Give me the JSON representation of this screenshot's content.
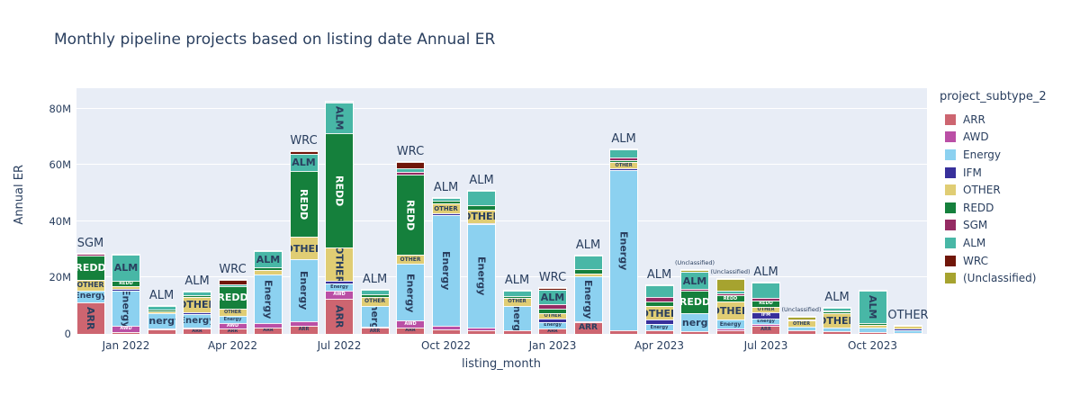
{
  "title": "Monthly pipeline projects based on listing date Annual ER",
  "y_axis": {
    "label": "Annual ER",
    "ticks": [
      {
        "label": "0",
        "value": 0
      },
      {
        "label": "20M",
        "value": 20
      },
      {
        "label": "40M",
        "value": 40
      },
      {
        "label": "60M",
        "value": 60
      },
      {
        "label": "80M",
        "value": 80
      }
    ]
  },
  "x_axis": {
    "label": "listing_month",
    "tick_labels": [
      "Jan 2022",
      "Apr 2022",
      "Jul 2022",
      "Oct 2022",
      "Jan 2023",
      "Apr 2023",
      "Jul 2023",
      "Oct 2023"
    ]
  },
  "legend": {
    "title": "project_subtype_2",
    "items": [
      "ARR",
      "AWD",
      "Energy",
      "IFM",
      "OTHER",
      "REDD",
      "SGM",
      "ALM",
      "WRC",
      "(Unclassified)"
    ]
  },
  "chart_data": {
    "type": "bar",
    "stacked": true,
    "unit": "M",
    "ylim": [
      0,
      87
    ],
    "x": [
      "Dec 2021",
      "Jan 2022",
      "Feb 2022",
      "Mar 2022",
      "Apr 2022",
      "May 2022",
      "Jun 2022",
      "Jul 2022",
      "Aug 2022",
      "Sep 2022",
      "Oct 2022",
      "Nov 2022",
      "Dec 2022",
      "Jan 2023",
      "Feb 2023",
      "Mar 2023",
      "Apr 2023",
      "May 2023",
      "Jun 2023",
      "Jul 2023",
      "Aug 2023",
      "Sep 2023",
      "Oct 2023",
      "Nov 2023"
    ],
    "series": [
      {
        "name": "ARR",
        "color": "#cd6570",
        "text_color": "#2a3f5f",
        "values": [
          11.2,
          0.8,
          1.5,
          1.8,
          1.8,
          2.3,
          2.9,
          12.5,
          2.2,
          2.3,
          1.5,
          1.3,
          1.4,
          1.8,
          4.2,
          1.2,
          1.3,
          1.0,
          1.2,
          2.9,
          1.3,
          1.0,
          0.7,
          0.4
        ]
      },
      {
        "name": "AWD",
        "color": "#ba4fa5",
        "text_color": "#ffffff",
        "values": [
          0,
          2.2,
          0.4,
          0.6,
          2.0,
          1.4,
          1.6,
          2.9,
          0.5,
          2.5,
          1.5,
          1.0,
          0,
          0,
          0.4,
          0,
          0,
          0,
          0.6,
          0.6,
          0,
          0,
          0,
          0
        ]
      },
      {
        "name": "Energy",
        "color": "#8cd1f0",
        "text_color": "#2a3f5f",
        "values": [
          4.2,
          12.2,
          5.5,
          4.5,
          2.7,
          17.5,
          22.0,
          2.6,
          7.3,
          20.0,
          39.2,
          36.7,
          8.5,
          2.5,
          15.7,
          57.0,
          2.2,
          6.5,
          3.2,
          2.0,
          1.2,
          1.2,
          1.4,
          0.8
        ]
      },
      {
        "name": "IFM",
        "color": "#38309b",
        "text_color": "#ffffff",
        "values": [
          0,
          0.9,
          0,
          0.8,
          0,
          0,
          0,
          0.8,
          0,
          0,
          0.5,
          0.4,
          0,
          1.0,
          0,
          0.5,
          1.6,
          0,
          0,
          2.2,
          0,
          0,
          0,
          0.6
        ]
      },
      {
        "name": "OTHER",
        "color": "#e0cd74",
        "text_color": "#2a3f5f",
        "values": [
          3.8,
          1.0,
          0.5,
          5.5,
          2.5,
          1.5,
          8.0,
          12.0,
          3.2,
          3.2,
          3.5,
          4.8,
          3.0,
          2.2,
          1.0,
          2.2,
          4.8,
          0,
          6.4,
          2.0,
          2.2,
          5.2,
          1.2,
          1.2
        ]
      },
      {
        "name": "REDD",
        "color": "#15803c",
        "text_color": "#ffffff",
        "values": [
          8.6,
          1.9,
          0.7,
          0.6,
          8.0,
          0.8,
          23.5,
          40.5,
          0.8,
          28.5,
          1.2,
          1.5,
          0.6,
          1.6,
          1.6,
          0.8,
          1.6,
          8.0,
          2.2,
          2.2,
          0,
          0.6,
          0.5,
          0
        ]
      },
      {
        "name": "SGM",
        "color": "#952b63",
        "text_color": "#ffffff",
        "values": [
          0.6,
          0,
          0,
          0,
          0,
          0,
          0,
          0,
          0,
          1.0,
          0,
          0,
          0,
          1.6,
          0,
          1.1,
          1.6,
          0.4,
          0.8,
          0.8,
          0.5,
          0.4,
          0,
          0
        ]
      },
      {
        "name": "ALM",
        "color": "#48b7a6",
        "text_color": "#2a3f5f",
        "values": [
          0,
          9.1,
          1.3,
          1.2,
          0.7,
          6.0,
          5.8,
          11.0,
          1.6,
          1.2,
          0.8,
          5.1,
          1.8,
          5.0,
          4.8,
          2.7,
          4.2,
          6.2,
          0.9,
          5.4,
          0,
          0.9,
          11.5,
          0
        ]
      },
      {
        "name": "WRC",
        "color": "#701609",
        "text_color": "#ffffff",
        "values": [
          0,
          0,
          0,
          0,
          1.5,
          0,
          1.2,
          0,
          0,
          2.3,
          0,
          0,
          0,
          0.6,
          0,
          0,
          0,
          0,
          0,
          0,
          0,
          0,
          0,
          0
        ]
      },
      {
        "name": "(Unclassified)",
        "color": "#a6a32f",
        "text_color": "#2a3f5f",
        "values": [
          0,
          0,
          0,
          0,
          0,
          0,
          0,
          0,
          0,
          0,
          0,
          0,
          0,
          0,
          0,
          0,
          0,
          0.6,
          4.2,
          0,
          0.8,
          0,
          0,
          0
        ]
      }
    ],
    "top_label_position": [
      "out",
      "in",
      "out",
      "out",
      "out",
      "in",
      "out",
      "in",
      "out",
      "out",
      "out",
      "out",
      "out",
      "out",
      "out",
      "out",
      "out",
      "out",
      "out",
      "out",
      "out",
      "out",
      "in",
      "out"
    ],
    "legend_position": "right",
    "grid": true
  }
}
